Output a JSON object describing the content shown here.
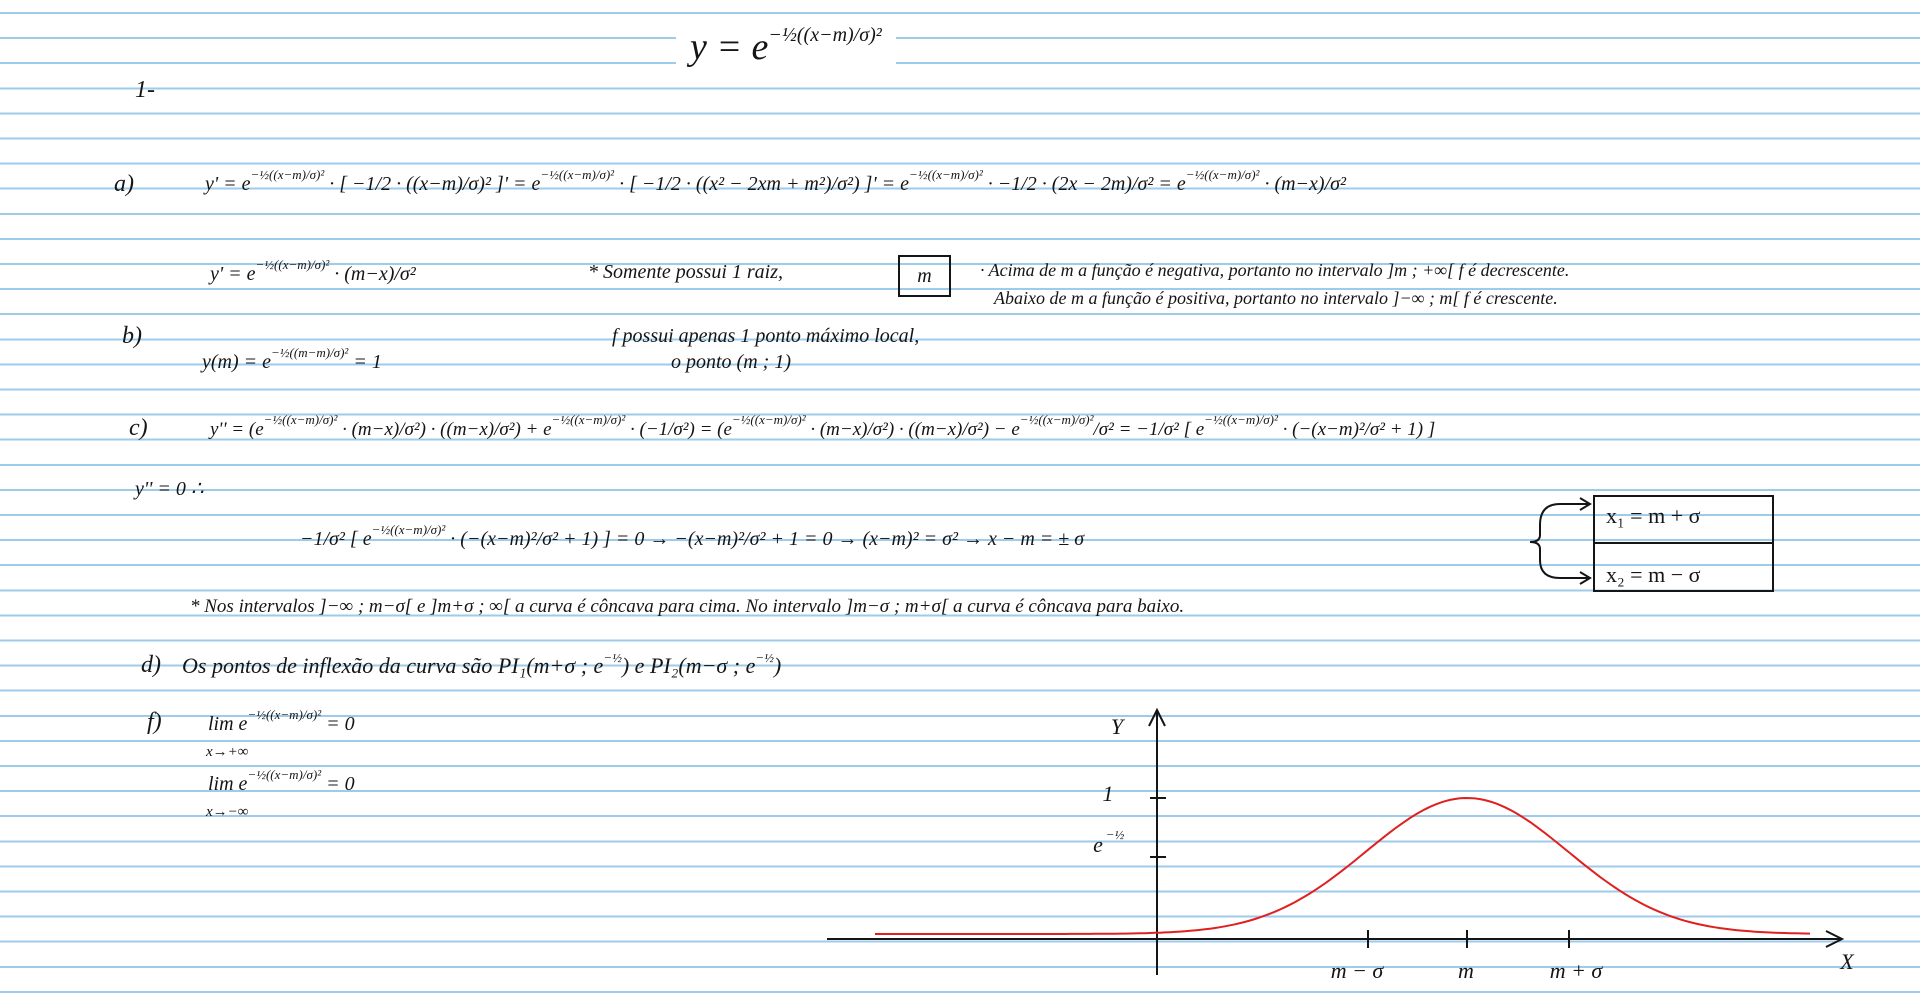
{
  "heading": {
    "base": "y = e",
    "exp": "−½((x−m)/σ)²"
  },
  "question": "1-",
  "a": {
    "label": "a)",
    "line1": [
      {
        "t": "y' = e",
        "e": "−½((x−m)/σ)²"
      },
      {
        "t": " · [ −1/2 · ((x−m)/σ)² ]'  = e",
        "e": "−½((x−m)/σ)²"
      },
      {
        "t": " · [ −1/2 · ((x² − 2xm + m²)/σ²) ]'  = e",
        "e": "−½((x−m)/σ)²"
      },
      {
        "t": " · −1/2 · (2x − 2m)/σ²  = e",
        "e": "−½((x−m)/σ)²"
      },
      {
        "t": " · (m−x)/σ²"
      }
    ],
    "line2": [
      {
        "t": "y' = e",
        "e": "−½((x−m)/σ)²"
      },
      {
        "t": " · (m−x)/σ²"
      }
    ],
    "root_note": "* Somente possui 1 raiz,",
    "root": "m",
    "above": "· Acima de m a função é negativa, portanto no intervalo ]m ; +∞[ f é decrescente.",
    "below": "Abaixo de m a função é positiva, portanto no intervalo ]−∞ ; m[ f é crescente."
  },
  "b": {
    "label": "b)",
    "line": [
      {
        "t": "y(m) = e",
        "e": "−½((m−m)/σ)²"
      },
      {
        "t": " = 1"
      }
    ],
    "note1": "f possui apenas 1 ponto máximo local,",
    "note2": "o ponto (m ; 1)"
  },
  "c": {
    "label": "c)",
    "line": [
      {
        "t": "y'' = (e",
        "e": "−½((x−m)/σ)²"
      },
      {
        "t": " · (m−x)/σ²) · ((m−x)/σ²) + e",
        "e": "−½((x−m)/σ)²"
      },
      {
        "t": " · (−1/σ²) = (e",
        "e": "−½((x−m)/σ)²"
      },
      {
        "t": " · (m−x)/σ²) · ((m−x)/σ²) − e",
        "e": "−½((x−m)/σ)²"
      },
      {
        "t": "/σ²  = −1/σ² [ e",
        "e": "−½((x−m)/σ)²"
      },
      {
        "t": " · (−(x−m)²/σ² + 1) ]"
      }
    ],
    "zero": "y'' = 0 ∴",
    "solve": [
      {
        "t": "−1/σ² [ e",
        "e": "−½((x−m)/σ)²"
      },
      {
        "t": " · (−(x−m)²/σ² + 1) ] = 0  →  −(x−m)²/σ² + 1 = 0  →  (x−m)² = σ²  →  x − m = ± σ"
      }
    ],
    "root1": "x₁ = m + σ",
    "root2": "x₂ = m − σ",
    "concavity": "* Nos intervalos ]−∞ ; m−σ[ e ]m+σ ; ∞[ a curva é côncava para cima. No intervalo ]m−σ ; m+σ[ a curva é côncava para baixo."
  },
  "d": {
    "label": "d)",
    "line": [
      {
        "t": "Os pontos de inflexão da curva são PI₁(m+σ ; e",
        "e": "−½"
      },
      {
        "t": ")  e  PI₂(m−σ ; e",
        "e": "−½"
      },
      {
        "t": ")"
      }
    ]
  },
  "f": {
    "label": "f)",
    "lim1": [
      {
        "t": "lim  e",
        "e": "−½((x−m)/σ)²"
      },
      {
        "t": " = 0"
      }
    ],
    "sub1": "x→+∞",
    "lim2": [
      {
        "t": "lim  e",
        "e": "−½((x−m)/σ)²"
      },
      {
        "t": " = 0"
      }
    ],
    "sub2": "x→−∞"
  },
  "graph": {
    "y_axis": "Y",
    "x_axis": "X",
    "y_one": "1",
    "y_inflection": {
      "base": "e",
      "exp": "−½"
    },
    "x_left": "m − σ",
    "x_mid": "m",
    "x_right": "m + σ"
  }
}
